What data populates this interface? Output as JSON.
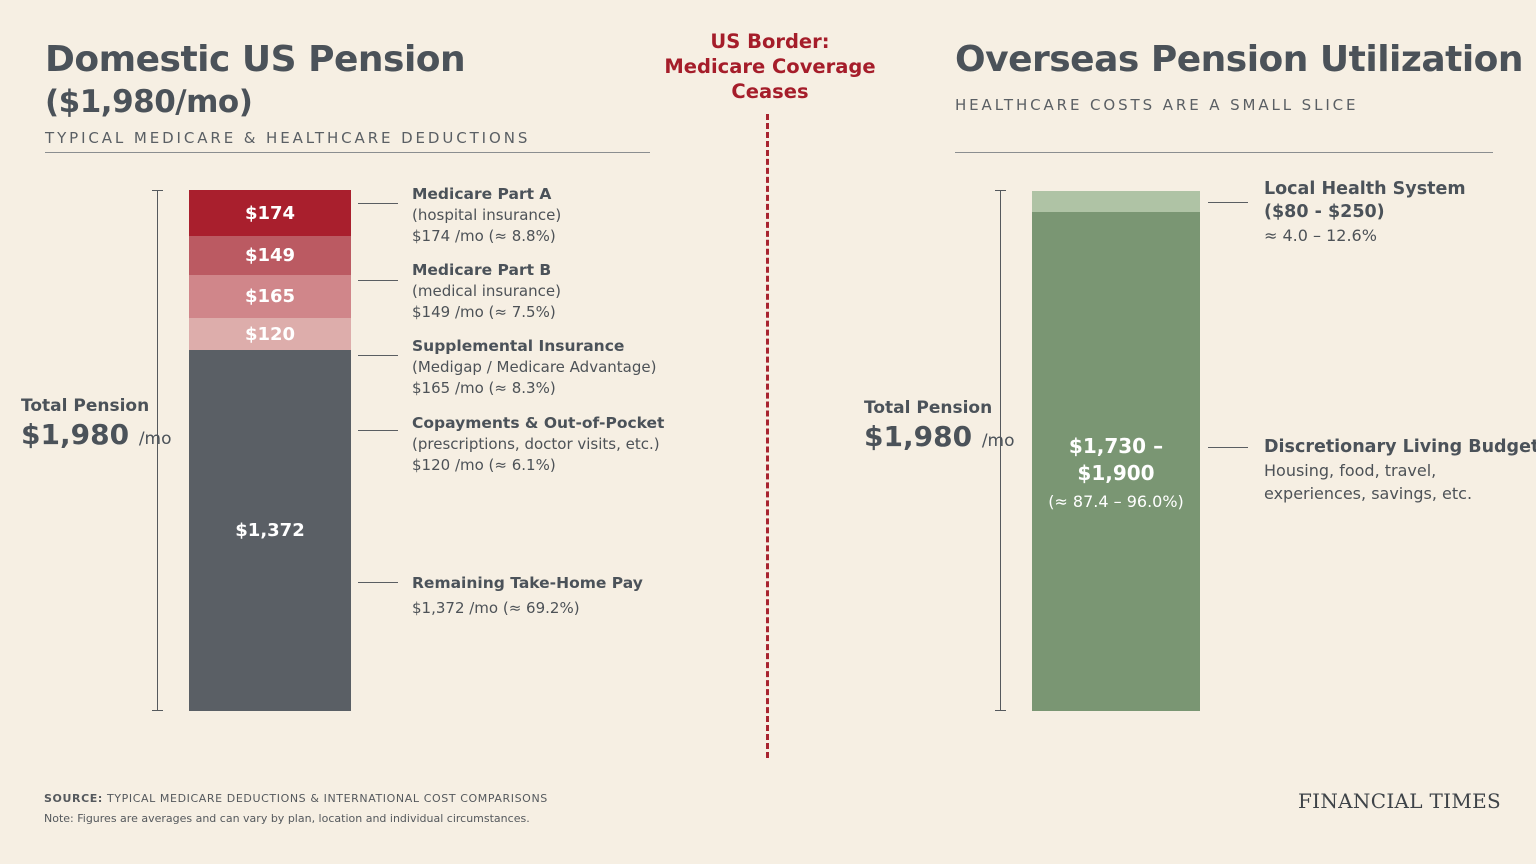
{
  "left": {
    "title": "Domestic US Pension",
    "title_line2": "($1,980/mo)",
    "subtitle": "TYPICAL MEDICARE & HEALTHCARE DEDUCTIONS",
    "total_label": "Total Pension",
    "total_value": "$1,980",
    "total_unit": "/mo"
  },
  "border": {
    "line1": "US Border:",
    "line2": "Medicare Coverage",
    "line3": "Ceases"
  },
  "right": {
    "title": "Overseas Pension Utilization",
    "subtitle": "HEALTHCARE COSTS ARE A SMALL SLICE",
    "total_label": "Total Pension",
    "total_value": "$1,980",
    "total_unit": "/mo"
  },
  "annotations_left": [
    {
      "title": "Medicare Part A",
      "line2": "(hospital insurance)",
      "line3": "$174 /mo (≈ 8.8%)"
    },
    {
      "title": "Medicare Part B",
      "line2": "(medical insurance)",
      "line3": "$149 /mo (≈ 7.5%)"
    },
    {
      "title": "Supplemental Insurance",
      "line2": "(Medigap / Medicare Advantage)",
      "line3": "$165 /mo (≈ 8.3%)"
    },
    {
      "title": "Copayments & Out-of-Pocket",
      "line2": "(prescriptions, doctor visits, etc.)",
      "line3": "$120 /mo (≈ 6.1%)"
    },
    {
      "title": "Remaining Take-Home Pay",
      "line2": "$1,372 /mo (≈ 69.2%)"
    }
  ],
  "annotations_right": [
    {
      "title": "Local Health System",
      "title2": "($80 - $250)",
      "line2": "≈ 4.0 – 12.6%"
    },
    {
      "title": "Discretionary Living Budget",
      "line2": "Housing, food, travel,",
      "line3": "experiences, savings, etc."
    }
  ],
  "footer": {
    "source_label": "SOURCE:",
    "source_text": "TYPICAL MEDICARE DEDUCTIONS & INTERNATIONAL COST COMPARISONS",
    "note": "Note: Figures are averages and can vary by plan, location and individual circumstances.",
    "brand": "FINANCIAL TIMES"
  },
  "colors": {
    "part_a": "#a91f2d",
    "part_b": "#bb5a62",
    "supplemental": "#d0868a",
    "copay": "#ddadab",
    "remaining": "#5a5f65",
    "local_health": "#afc3a5",
    "discretionary": "#7a9673",
    "border": "#a51d2a"
  },
  "chart_data": [
    {
      "type": "bar",
      "stacked": true,
      "total": 1980,
      "categories": [
        "Domestic US Pension"
      ],
      "series": [
        {
          "name": "Medicare Part A",
          "values": [
            174
          ],
          "label": "$174"
        },
        {
          "name": "Medicare Part B",
          "values": [
            149
          ],
          "label": "$149"
        },
        {
          "name": "Supplemental Insurance",
          "values": [
            165
          ],
          "label": "$165"
        },
        {
          "name": "Copayments & Out-of-Pocket",
          "values": [
            120
          ],
          "label": "$120"
        },
        {
          "name": "Remaining Take-Home Pay",
          "values": [
            1372
          ],
          "label": "$1,372"
        }
      ]
    },
    {
      "type": "bar",
      "stacked": true,
      "total": 1980,
      "categories": [
        "Overseas Pension Utilization"
      ],
      "series": [
        {
          "name": "Local Health System",
          "values": [
            80
          ],
          "range": [
            80,
            250
          ]
        },
        {
          "name": "Discretionary Living Budget",
          "values": [
            1900
          ],
          "range": [
            1730,
            1900
          ],
          "label": "$1,730 –",
          "label2": "$1,900",
          "label3": "(≈ 87.4 – 96.0%)"
        }
      ]
    }
  ]
}
